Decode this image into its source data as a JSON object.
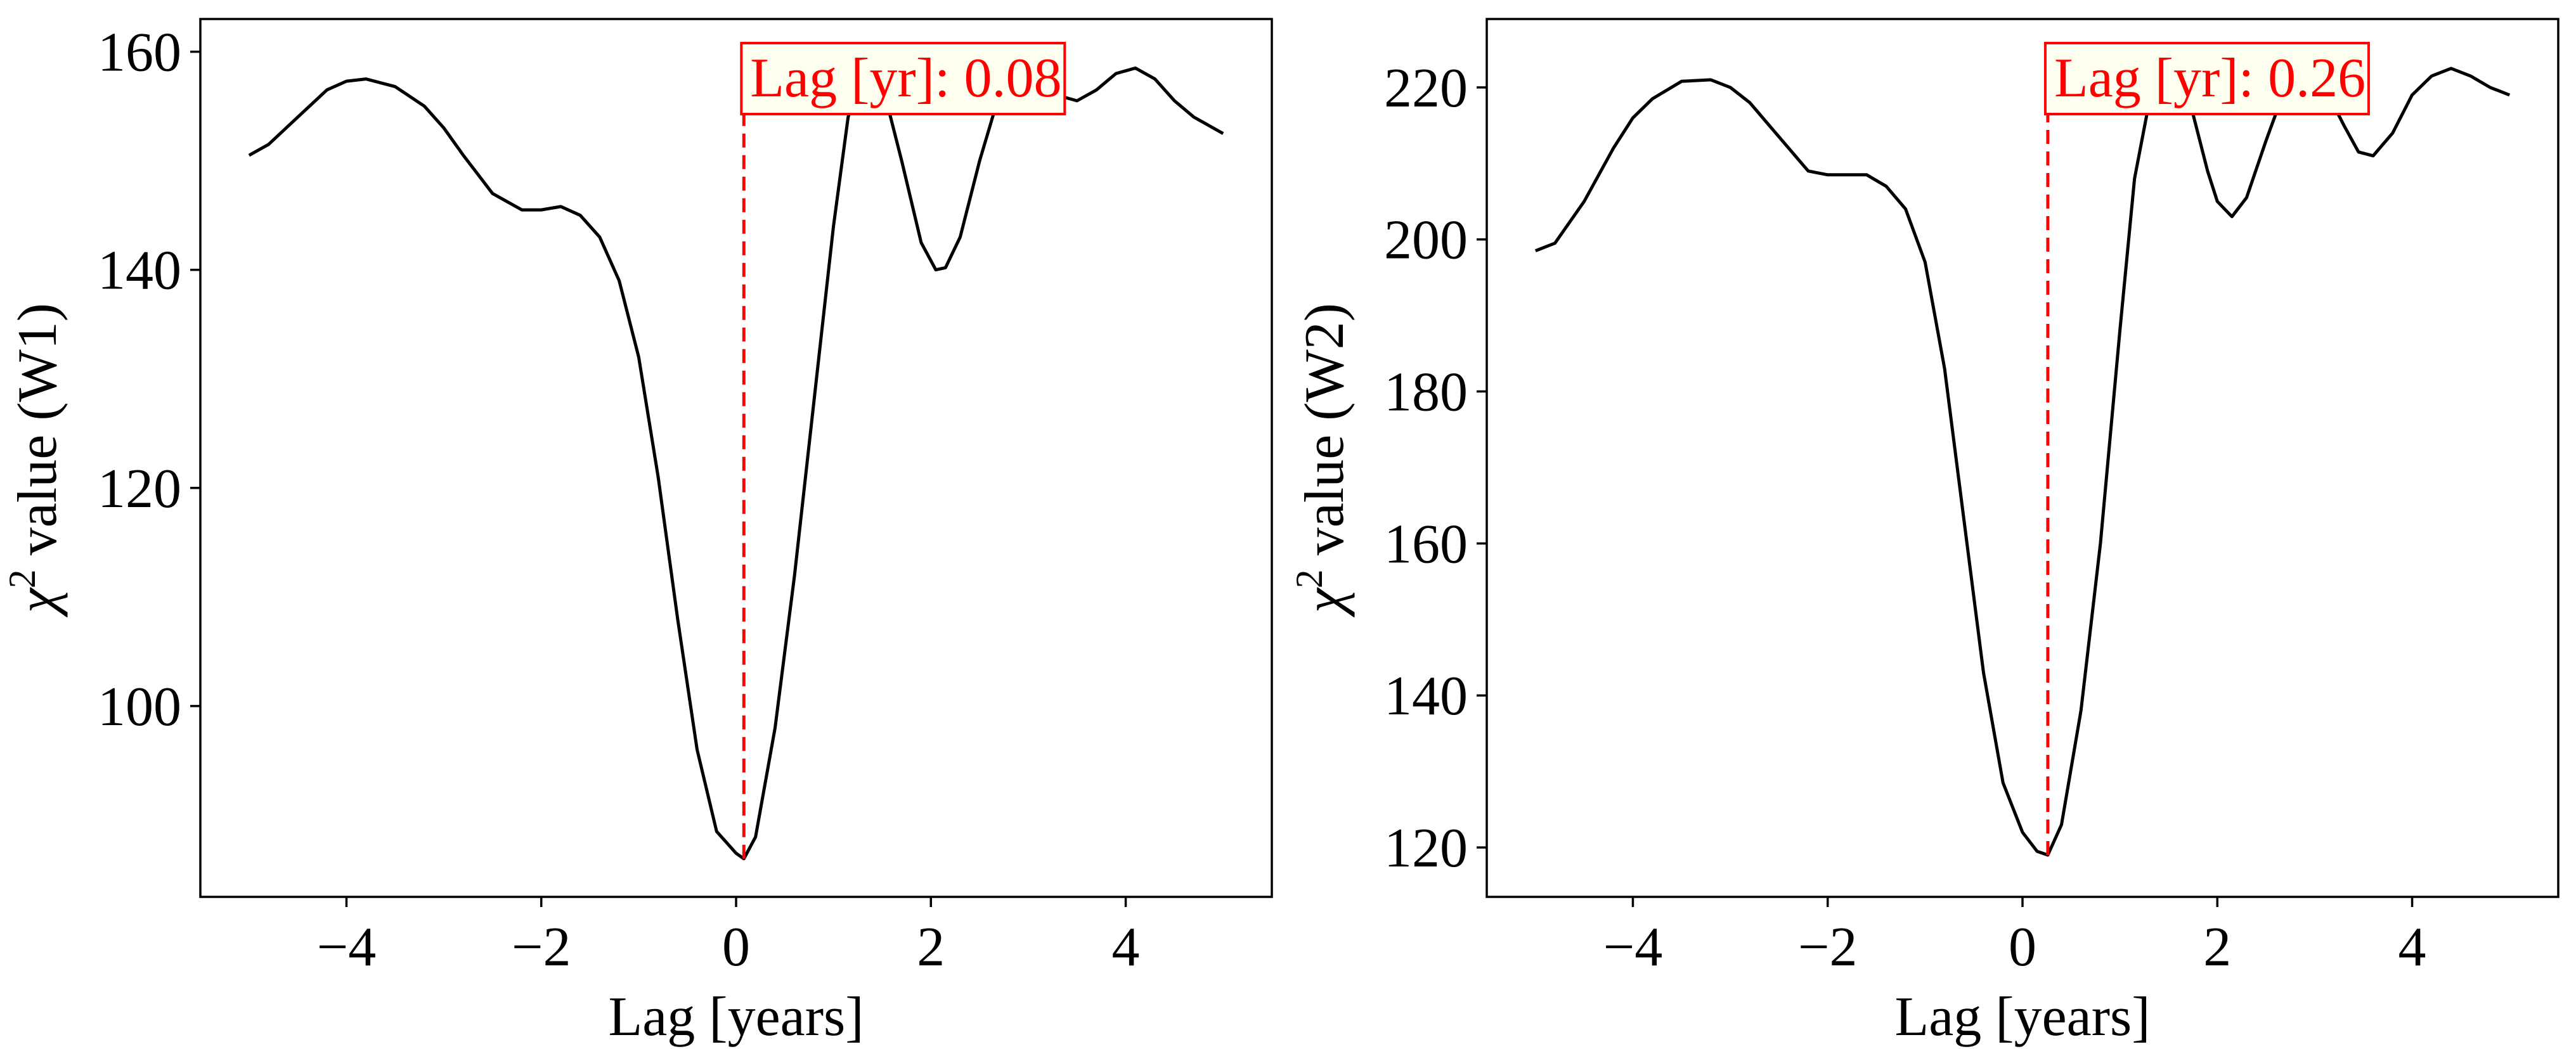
{
  "chart_data": [
    {
      "type": "line",
      "xlabel": "Lag [years]",
      "ylabel_main": "χ",
      "ylabel_sup": "2",
      "ylabel_rest": " value (W1)",
      "xlim": [
        -5.5,
        5.5
      ],
      "ylim": [
        82.5,
        163
      ],
      "xticks": [
        -4,
        -2,
        0,
        2,
        4
      ],
      "yticks": [
        100,
        120,
        140,
        160
      ],
      "x": [
        -5,
        -4.8,
        -4.5,
        -4.2,
        -4.0,
        -3.8,
        -3.5,
        -3.2,
        -3.0,
        -2.8,
        -2.5,
        -2.2,
        -2.0,
        -1.8,
        -1.6,
        -1.4,
        -1.2,
        -1.0,
        -0.8,
        -0.6,
        -0.4,
        -0.2,
        0.0,
        0.08,
        0.2,
        0.4,
        0.6,
        0.8,
        1.0,
        1.15,
        1.3,
        1.5,
        1.7,
        1.9,
        2.05,
        2.15,
        2.3,
        2.5,
        2.7,
        2.9,
        3.1,
        3.3,
        3.5,
        3.7,
        3.9,
        4.1,
        4.3,
        4.5,
        4.7,
        5.0
      ],
      "y": [
        150.5,
        151.5,
        154.0,
        156.5,
        157.3,
        157.5,
        156.8,
        155.0,
        153.0,
        150.5,
        147.0,
        145.5,
        145.5,
        145.8,
        145.0,
        143.0,
        139.0,
        132.0,
        121.0,
        108.0,
        96.0,
        88.5,
        86.5,
        86.0,
        88.0,
        98.0,
        112.0,
        128.0,
        144.0,
        154.0,
        158.0,
        157.0,
        150.0,
        142.5,
        140.0,
        140.2,
        143.0,
        150.0,
        156.0,
        158.0,
        157.5,
        156.0,
        155.5,
        156.5,
        158.0,
        158.5,
        157.5,
        155.5,
        154.0,
        152.5
      ],
      "lag_value": 0.08,
      "annotation": "Lag [yr]: 0.08"
    },
    {
      "type": "line",
      "xlabel": "Lag [years]",
      "ylabel_main": "χ",
      "ylabel_sup": "2",
      "ylabel_rest": " value (W2)",
      "xlim": [
        -5.5,
        5.5
      ],
      "ylim": [
        113.5,
        229
      ],
      "xticks": [
        -4,
        -2,
        0,
        2,
        4
      ],
      "yticks": [
        120,
        140,
        160,
        180,
        200,
        220
      ],
      "x": [
        -5,
        -4.8,
        -4.5,
        -4.2,
        -4.0,
        -3.8,
        -3.5,
        -3.2,
        -3.0,
        -2.8,
        -2.5,
        -2.2,
        -2.0,
        -1.8,
        -1.6,
        -1.4,
        -1.2,
        -1.0,
        -0.8,
        -0.6,
        -0.4,
        -0.2,
        0.0,
        0.15,
        0.26,
        0.4,
        0.6,
        0.8,
        1.0,
        1.15,
        1.3,
        1.5,
        1.7,
        1.9,
        2.0,
        2.15,
        2.3,
        2.5,
        2.7,
        2.9,
        3.1,
        3.3,
        3.45,
        3.6,
        3.8,
        4.0,
        4.2,
        4.4,
        4.6,
        4.8,
        5.0
      ],
      "y": [
        198.5,
        199.5,
        205.0,
        212.0,
        216.0,
        218.5,
        220.8,
        221.0,
        220.0,
        218.0,
        213.5,
        209.0,
        208.5,
        208.5,
        208.5,
        207.0,
        204.0,
        197.0,
        183.0,
        163.0,
        143.0,
        128.5,
        122.0,
        119.5,
        119.0,
        123.0,
        138.0,
        160.0,
        188.0,
        208.0,
        218.0,
        222.0,
        219.0,
        209.0,
        205.0,
        203.0,
        205.5,
        213.0,
        220.0,
        222.0,
        220.0,
        215.0,
        211.5,
        211.0,
        214.0,
        219.0,
        221.5,
        222.5,
        221.5,
        220.0,
        219.0
      ],
      "lag_value": 0.26,
      "annotation": "Lag [yr]: 0.26"
    }
  ]
}
